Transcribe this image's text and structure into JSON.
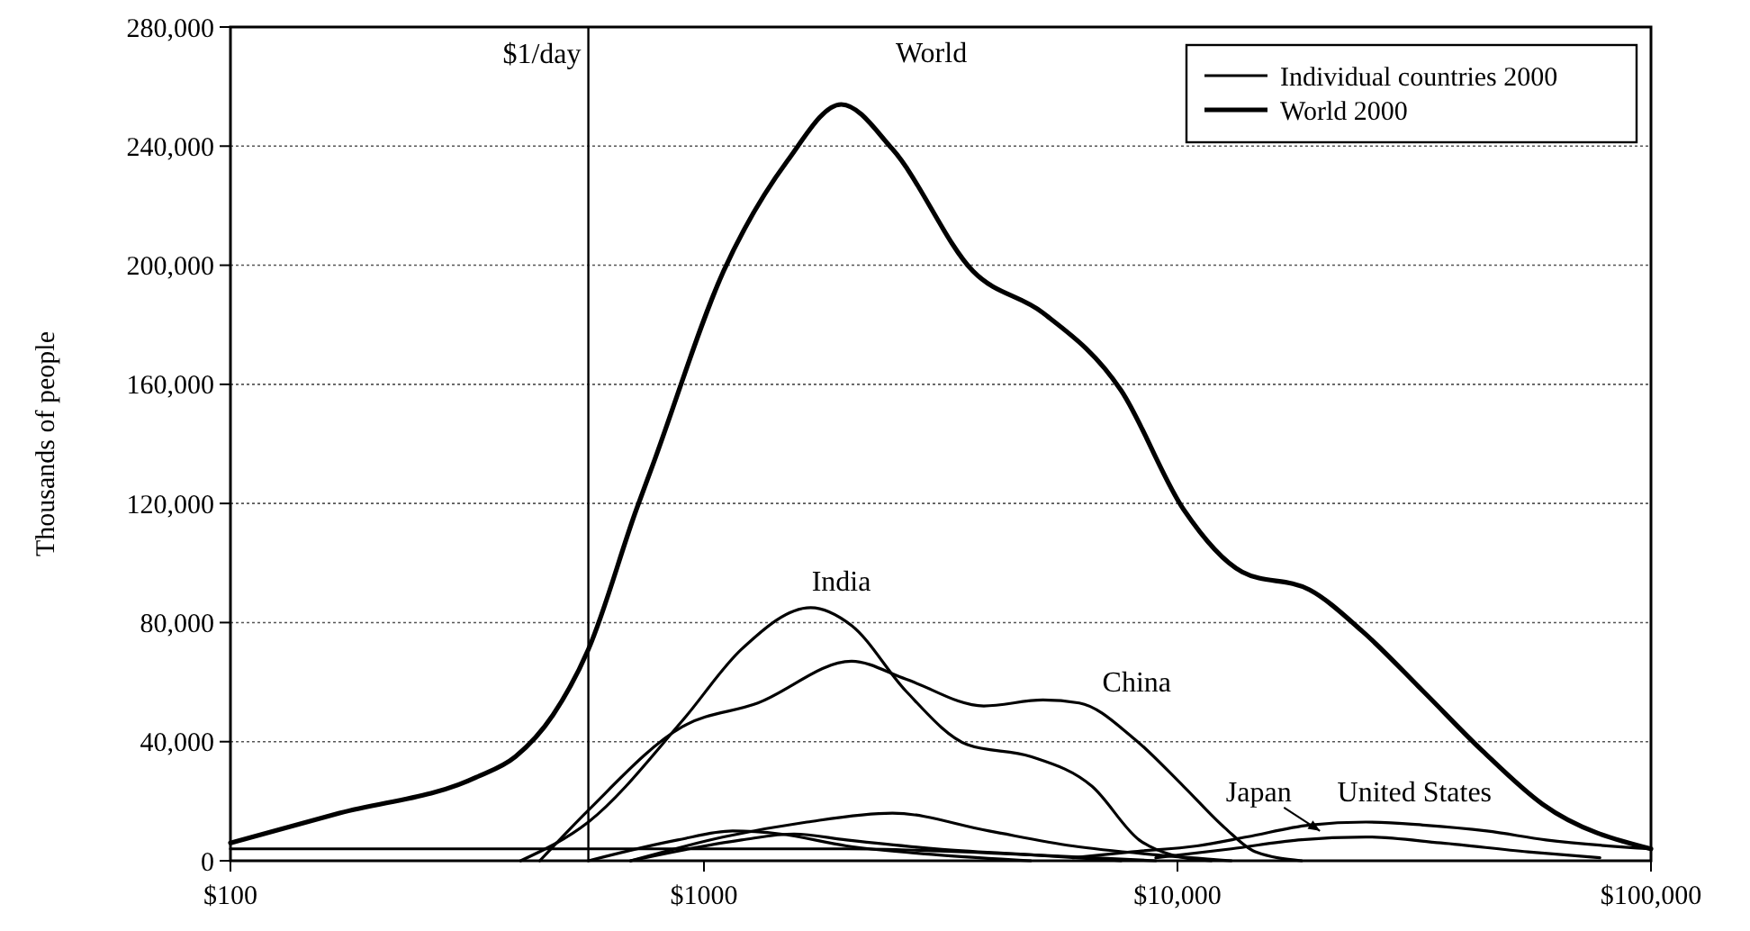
{
  "chart_data": {
    "type": "line",
    "ylabel": "Thousands of people",
    "log": "x",
    "grid": "y",
    "line_style": "solid",
    "marker": "none",
    "xlim": [
      100,
      100000
    ],
    "xticks": [
      {
        "value": 100,
        "label": "$100"
      },
      {
        "value": 1000,
        "label": "$1000"
      },
      {
        "value": 10000,
        "label": "$10,000"
      },
      {
        "value": 100000,
        "label": "$100,000"
      }
    ],
    "ylim": [
      0,
      280000
    ],
    "yticks": [
      {
        "value": 0,
        "label": "0"
      },
      {
        "value": 40000,
        "label": "40,000"
      },
      {
        "value": 80000,
        "label": "80,000"
      },
      {
        "value": 120000,
        "label": "120,000"
      },
      {
        "value": 160000,
        "label": "160,000"
      },
      {
        "value": 200000,
        "label": "200,000"
      },
      {
        "value": 240000,
        "label": "240,000"
      },
      {
        "value": 280000,
        "label": "280,000"
      }
    ],
    "ref_lines": [
      {
        "axis": "x",
        "value": 570,
        "label": "$1/day",
        "color": "#000000"
      }
    ],
    "annotations": [
      "Individual countries 2000",
      "World 2000"
    ],
    "series": [
      {
        "name": "World",
        "color": "#000000",
        "x": [
          100,
          170,
          330,
          400,
          480,
          570,
          720,
          780,
          1100,
          1500,
          1950,
          2500,
          3700,
          5200,
          7600,
          10300,
          13700,
          19000,
          24600,
          33000,
          44000,
          59000,
          100000
        ],
        "values": [
          6000,
          16000,
          28000,
          35000,
          49000,
          71000,
          118000,
          133000,
          198000,
          235000,
          254000,
          239000,
          198000,
          184000,
          158000,
          118000,
          97000,
          91000,
          77000,
          57000,
          37000,
          19000,
          4000
        ]
      },
      {
        "name": "India",
        "color": "#000000",
        "x": [
          410,
          570,
          900,
          1200,
          1680,
          2050,
          2670,
          3600,
          4900,
          6600,
          8300,
          9700,
          11800
        ],
        "values": [
          0,
          13000,
          47000,
          71000,
          85000,
          79000,
          57000,
          39000,
          35000,
          25000,
          7000,
          2000,
          0
        ]
      },
      {
        "name": "China",
        "color": "#000000",
        "x": [
          450,
          570,
          900,
          1300,
          2050,
          2670,
          3900,
          5200,
          6200,
          8100,
          10300,
          12600,
          14600,
          18300
        ],
        "values": [
          0,
          17000,
          45000,
          53000,
          67000,
          61000,
          52000,
          54000,
          53000,
          41000,
          25000,
          11000,
          3000,
          0
        ]
      },
      {
        "name": "United States",
        "color": "#000000",
        "x": [
          6000,
          8000,
          11000,
          14000,
          19000,
          25000,
          33000,
          45000,
          60000,
          100000
        ],
        "values": [
          1000,
          3000,
          5000,
          8000,
          12000,
          13000,
          12000,
          10000,
          7000,
          4000
        ]
      },
      {
        "name": "Japan",
        "color": "#000000",
        "x": [
          9000,
          13000,
          18000,
          25000,
          36000,
          55000,
          78000
        ],
        "values": [
          1000,
          4000,
          7000,
          8000,
          6000,
          3000,
          1000
        ]
      },
      {
        "color": "#000000",
        "x": [
          700,
          1100,
          1650,
          2500,
          4000,
          6000,
          9000,
          13000
        ],
        "values": [
          0,
          8000,
          13000,
          16000,
          10000,
          5000,
          2000,
          0
        ]
      },
      {
        "color": "#000000",
        "x": [
          570,
          880,
          1150,
          1450,
          2000,
          3100,
          4900
        ],
        "values": [
          0,
          7000,
          10000,
          9000,
          5000,
          2000,
          0
        ]
      },
      {
        "color": "#000000",
        "x": [
          700,
          1200,
          1550,
          2000,
          3100,
          4900,
          7600
        ],
        "values": [
          0,
          7000,
          9000,
          7000,
          4000,
          2000,
          0
        ]
      },
      {
        "color": "#000000",
        "x": [
          100,
          450,
          1100,
          2000,
          4900,
          9000
        ],
        "values": [
          4000,
          4000,
          4000,
          4000,
          2000,
          0
        ]
      }
    ]
  }
}
